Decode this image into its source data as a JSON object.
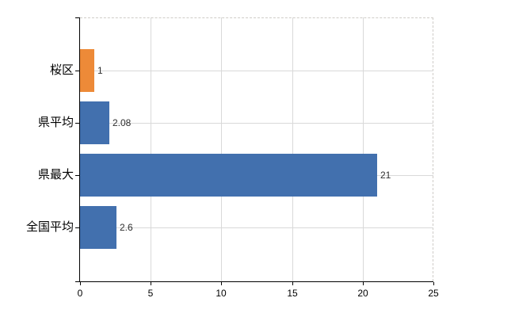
{
  "chart_data": {
    "type": "bar",
    "orientation": "horizontal",
    "title": "",
    "xlabel": "",
    "ylabel": "",
    "categories": [
      "桜区",
      "県平均",
      "県最大",
      "全国平均"
    ],
    "values": [
      1,
      2.08,
      21,
      2.6
    ],
    "value_labels": [
      "1",
      "2.08",
      "21",
      "2.6"
    ],
    "bar_colors": [
      "#ed8a38",
      "#4270ae",
      "#4270ae",
      "#4270ae"
    ],
    "xlim": [
      0,
      25
    ],
    "x_ticks": [
      0,
      5,
      10,
      15,
      20,
      25
    ],
    "x_tick_labels": [
      "0",
      "5",
      "10",
      "15",
      "20",
      "25"
    ],
    "grid": true,
    "legend": false,
    "plot_border_style": "dashed-top-right"
  },
  "colors": {
    "accent_orange": "#ed8a38",
    "accent_blue": "#4270ae",
    "gridline": "#d9d9d9",
    "plot_border": "#cfccc8",
    "axis": "#000000",
    "background": "#ffffff",
    "value_text": "#2e2e2e",
    "label_text": "#000000"
  }
}
